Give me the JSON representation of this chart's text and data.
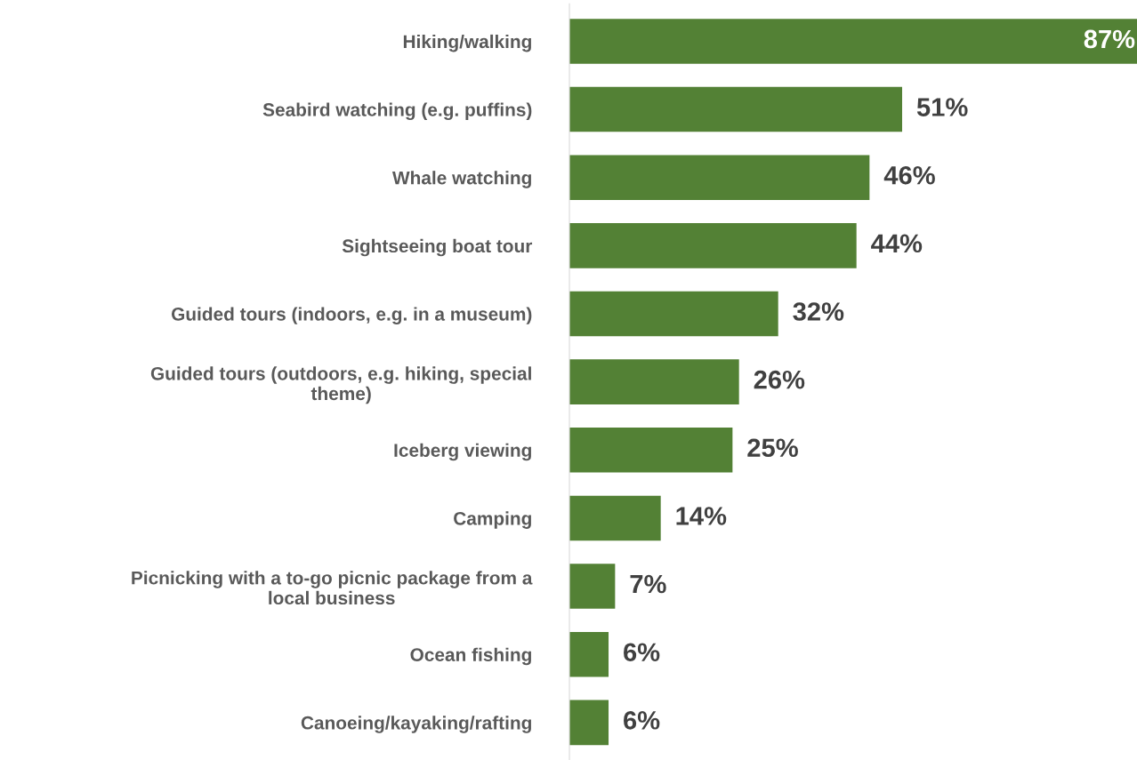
{
  "chart_data": {
    "type": "bar",
    "orientation": "horizontal",
    "categories": [
      "Hiking/walking",
      "Seabird watching (e.g. puffins)",
      "Whale watching",
      "Sightseeing boat tour",
      "Guided tours (indoors, e.g. in a museum)",
      "Guided tours (outdoors, e.g. hiking, special theme)",
      "Iceberg viewing",
      "Camping",
      "Picnicking with a to-go picnic package from a local business",
      "Ocean fishing",
      "Canoeing/kayaking/rafting"
    ],
    "values": [
      87,
      51,
      46,
      44,
      32,
      26,
      25,
      14,
      7,
      6,
      6
    ],
    "value_labels": [
      "87%",
      "51%",
      "46%",
      "44%",
      "32%",
      "26%",
      "25%",
      "14%",
      "7%",
      "6%",
      "6%"
    ],
    "color": "#538135",
    "tick_labels": "y"
  }
}
